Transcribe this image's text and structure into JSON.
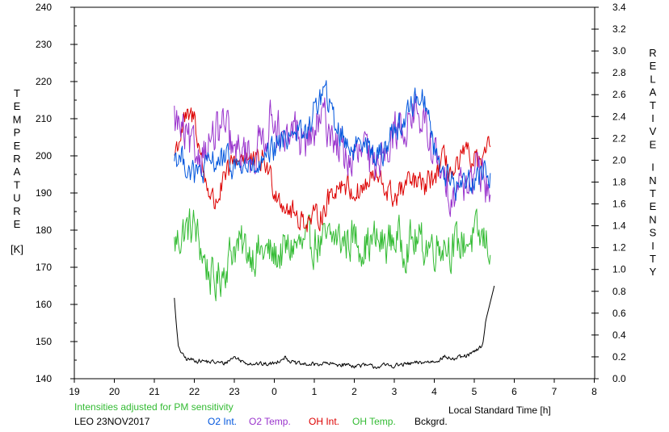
{
  "chart_data": {
    "type": "line",
    "left_axis_label": "TEMPERATURE",
    "left_axis_unit": "[K]",
    "right_axis_label": "RELATIVE INTENSITY",
    "xlabel": "Local Standard Time [h]",
    "left_ylim": [
      140,
      240
    ],
    "right_ylim": [
      0.0,
      3.4
    ],
    "x_ticks": [
      "19",
      "20",
      "21",
      "22",
      "23",
      "0",
      "1",
      "2",
      "3",
      "4",
      "5",
      "6",
      "7",
      "8"
    ],
    "left_ticks": [
      "240",
      "230",
      "220",
      "210",
      "200",
      "190",
      "180",
      "170",
      "160",
      "150",
      "140"
    ],
    "right_ticks": [
      "3.4",
      "3.2",
      "3.0",
      "2.8",
      "2.6",
      "2.4",
      "2.2",
      "2.0",
      "1.8",
      "1.6",
      "1.4",
      "1.2",
      "1.0",
      "0.8",
      "0.6",
      "0.4",
      "0.2",
      "0.0"
    ],
    "grid": false,
    "note": "Intensities adjusted for PM sensitivity",
    "station": "LEO 23NOV2017",
    "series": [
      {
        "name": "O2 Int.",
        "axis": "right",
        "color": "#0055dd",
        "x": [
          21.5,
          21.75,
          22.0,
          22.25,
          22.5,
          22.75,
          23.0,
          23.25,
          23.5,
          23.75,
          24.0,
          24.25,
          24.5,
          24.75,
          25.0,
          25.25,
          25.5,
          25.75,
          26.0,
          26.25,
          26.5,
          26.75,
          27.0,
          27.25,
          27.5,
          27.75,
          28.0,
          28.25,
          28.5,
          28.75,
          29.0,
          29.25,
          29.4
        ],
        "y": [
          2.05,
          2.0,
          1.85,
          1.9,
          2.0,
          2.0,
          1.95,
          1.95,
          1.9,
          1.95,
          2.1,
          2.2,
          2.3,
          2.2,
          2.45,
          2.65,
          2.35,
          2.2,
          2.1,
          2.25,
          2.0,
          2.1,
          2.3,
          2.35,
          2.55,
          2.6,
          2.1,
          1.9,
          1.75,
          1.8,
          1.85,
          1.9,
          1.85
        ]
      },
      {
        "name": "O2 Temp.",
        "axis": "left",
        "color": "#9933cc",
        "x": [
          21.5,
          21.75,
          22.0,
          22.25,
          22.5,
          22.75,
          23.0,
          23.25,
          23.5,
          23.75,
          24.0,
          24.25,
          24.5,
          24.75,
          25.0,
          25.25,
          25.5,
          25.75,
          26.0,
          26.25,
          26.5,
          26.75,
          27.0,
          27.25,
          27.5,
          27.75,
          28.0,
          28.25,
          28.5,
          28.75,
          29.0,
          29.25,
          29.4
        ],
        "y": [
          210,
          205,
          200,
          202,
          205,
          208,
          200,
          201,
          200,
          206,
          212,
          200,
          208,
          203,
          206,
          210,
          205,
          200,
          198,
          202,
          195,
          204,
          206,
          208,
          212,
          208,
          200,
          192,
          191,
          193,
          195,
          193,
          191
        ]
      },
      {
        "name": "OH Int.",
        "axis": "right",
        "color": "#dd0000",
        "x": [
          21.5,
          21.75,
          22.0,
          22.25,
          22.5,
          22.75,
          23.0,
          23.25,
          23.5,
          23.75,
          24.0,
          24.25,
          24.5,
          24.75,
          25.0,
          25.25,
          25.5,
          25.75,
          26.0,
          26.25,
          26.5,
          26.75,
          27.0,
          27.25,
          27.5,
          27.75,
          28.0,
          28.25,
          28.5,
          28.75,
          29.0,
          29.25,
          29.4
        ],
        "y": [
          2.05,
          2.35,
          2.4,
          1.85,
          1.6,
          1.8,
          2.0,
          2.05,
          1.95,
          2.0,
          1.75,
          1.6,
          1.5,
          1.45,
          1.45,
          1.55,
          1.75,
          1.8,
          1.7,
          1.75,
          1.85,
          1.75,
          1.65,
          1.75,
          1.8,
          1.75,
          1.85,
          2.0,
          1.85,
          2.05,
          2.0,
          1.95,
          2.2
        ]
      },
      {
        "name": "OH Temp.",
        "axis": "left",
        "color": "#33bb33",
        "x": [
          21.5,
          21.75,
          22.0,
          22.25,
          22.5,
          22.75,
          23.0,
          23.25,
          23.5,
          23.75,
          24.0,
          24.25,
          24.5,
          24.75,
          25.0,
          25.25,
          25.5,
          25.75,
          26.0,
          26.25,
          26.5,
          26.75,
          27.0,
          27.25,
          27.5,
          27.75,
          28.0,
          28.25,
          28.5,
          28.75,
          29.0,
          29.25,
          29.4
        ],
        "y": [
          176,
          180,
          181,
          172,
          165,
          170,
          176,
          175,
          174,
          174,
          173,
          174,
          176,
          175,
          177,
          176,
          178,
          177,
          178,
          176,
          177,
          176,
          178,
          176,
          177,
          176,
          176,
          177,
          175,
          177,
          178,
          177,
          176
        ]
      },
      {
        "name": "Bckgrd.",
        "axis": "right",
        "color": "#000000",
        "x": [
          21.5,
          21.55,
          21.6,
          21.7,
          21.8,
          22.0,
          22.25,
          22.5,
          22.75,
          23.0,
          23.25,
          23.5,
          23.75,
          24.0,
          24.25,
          24.5,
          24.75,
          25.0,
          25.25,
          25.5,
          25.75,
          26.0,
          26.25,
          26.5,
          26.75,
          27.0,
          27.25,
          27.5,
          27.75,
          28.0,
          28.25,
          28.5,
          28.75,
          29.0,
          29.2,
          29.3,
          29.4,
          29.5
        ],
        "y": [
          0.74,
          0.5,
          0.3,
          0.22,
          0.18,
          0.17,
          0.16,
          0.15,
          0.14,
          0.2,
          0.15,
          0.14,
          0.13,
          0.14,
          0.2,
          0.14,
          0.13,
          0.13,
          0.14,
          0.13,
          0.13,
          0.12,
          0.12,
          0.11,
          0.12,
          0.12,
          0.13,
          0.14,
          0.15,
          0.16,
          0.2,
          0.18,
          0.2,
          0.24,
          0.3,
          0.55,
          0.7,
          0.85
        ]
      }
    ]
  },
  "footer": {
    "note": "Intensities adjusted for PM sensitivity",
    "note_color": "#33bb33",
    "station": "LEO 23NOV2017",
    "xlabel": "Local Standard Time [h]"
  }
}
